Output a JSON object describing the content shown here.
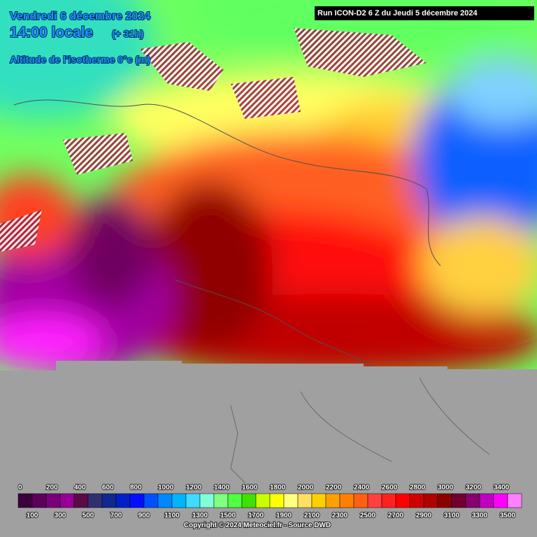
{
  "header": {
    "date": "Vendredi 6 décembre 2024",
    "time": "14:00 locale",
    "offset": "(+ 31h)",
    "parameter": "Altitude de l'isotherme 0°c (m)",
    "run": "Run ICON-D2 6 Z du Jeudi 5 décembre 2024"
  },
  "legend": {
    "values": [
      0,
      100,
      200,
      300,
      400,
      500,
      600,
      700,
      800,
      900,
      1000,
      1100,
      1200,
      1300,
      1400,
      1500,
      1600,
      1700,
      1800,
      1900,
      2000,
      2100,
      2200,
      2300,
      2400,
      2500,
      2600,
      2700,
      2800,
      2900,
      3000,
      3100,
      3200,
      3300,
      3400,
      3500
    ],
    "colors": [
      "#3c003c",
      "#5a005a",
      "#7a007a",
      "#960096",
      "#5a0a46",
      "#303070",
      "#102890",
      "#0020c8",
      "#0010ff",
      "#0050ff",
      "#0088ff",
      "#00b4ff",
      "#40dcff",
      "#80ffd8",
      "#80ff80",
      "#50ff40",
      "#40e000",
      "#c8ff00",
      "#ffff00",
      "#ffff80",
      "#ffe060",
      "#ffd000",
      "#ffa000",
      "#ff8000",
      "#ff6010",
      "#ff4040",
      "#ff2020",
      "#ff0000",
      "#d00000",
      "#b00000",
      "#8c0000",
      "#700030",
      "#880070",
      "#c000c0",
      "#ff00ff",
      "#ff80ff"
    ]
  },
  "footer": {
    "copyright": "Copyright © 2024 Meteociel.fr - Source DWD"
  }
}
